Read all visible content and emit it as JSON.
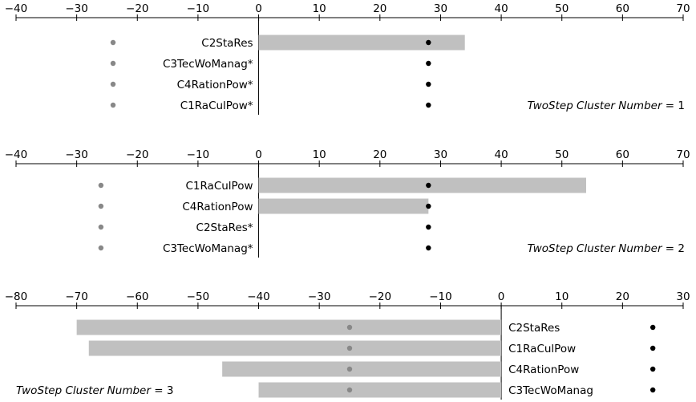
{
  "chart_data": [
    {
      "type": "bar",
      "orientation": "horizontal",
      "note_prefix": "TwoStep Cluster Number",
      "note_value": "1",
      "xlim": [
        -40,
        70
      ],
      "ticks": [
        -40,
        -30,
        -20,
        -10,
        0,
        10,
        20,
        30,
        40,
        50,
        60,
        70
      ],
      "tick_labels": [
        "−40",
        "−30",
        "−20",
        "−10",
        "0",
        "10",
        "20",
        "30",
        "40",
        "50",
        "60",
        "70"
      ],
      "categories": [
        "C2StaRes",
        "C3TecWoManag*",
        "C4RationPow*",
        "C1RaCulPow*"
      ],
      "values": [
        34,
        0,
        0,
        0
      ],
      "critical_value": -24,
      "importance_value": 28,
      "label_side": "left"
    },
    {
      "type": "bar",
      "orientation": "horizontal",
      "note_prefix": "TwoStep Cluster Number",
      "note_value": "2",
      "xlim": [
        -40,
        70
      ],
      "ticks": [
        -40,
        -30,
        -20,
        -10,
        0,
        10,
        20,
        30,
        40,
        50,
        60,
        70
      ],
      "tick_labels": [
        "−40",
        "−30",
        "−20",
        "−10",
        "0",
        "10",
        "20",
        "30",
        "40",
        "50",
        "60",
        "70"
      ],
      "categories": [
        "C1RaCulPow",
        "C4RationPow",
        "C2StaRes*",
        "C3TecWoManag*"
      ],
      "values": [
        54,
        28,
        0,
        0
      ],
      "critical_value": -26,
      "importance_value": 28,
      "label_side": "left"
    },
    {
      "type": "bar",
      "orientation": "horizontal",
      "note_prefix": "TwoStep Cluster Number",
      "note_value": "3",
      "xlim": [
        -80,
        30
      ],
      "ticks": [
        -80,
        -70,
        -60,
        -50,
        -40,
        -30,
        -20,
        -10,
        0,
        10,
        20,
        30
      ],
      "tick_labels": [
        "−80",
        "−70",
        "−60",
        "−50",
        "−40",
        "−30",
        "−20",
        "−10",
        "0",
        "10",
        "20",
        "30"
      ],
      "categories": [
        "C2StaRes",
        "C1RaCulPow",
        "C4RationPow",
        "C3TecWoManag"
      ],
      "values": [
        -70,
        -68,
        -46,
        -40
      ],
      "critical_value": -25,
      "importance_value": 25,
      "label_side": "right"
    }
  ],
  "colors": {
    "bar": "#c0c0c0",
    "critical_dot": "#888888",
    "importance_dot": "#000000"
  }
}
